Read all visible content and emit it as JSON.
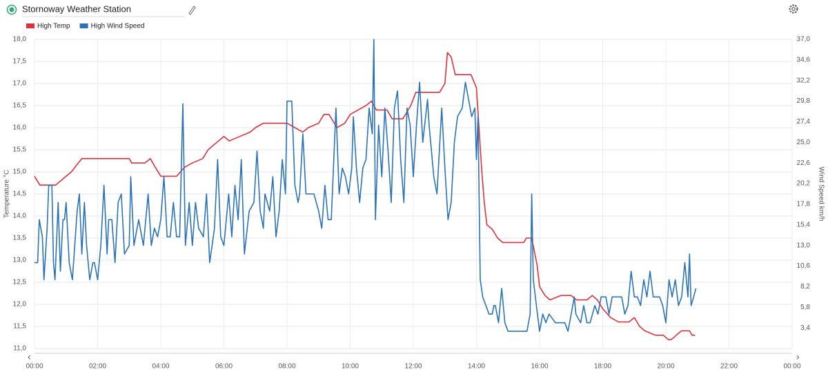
{
  "chart_data": {
    "type": "line",
    "title": "Stornoway Weather Station",
    "ylabel": "Temperature °C",
    "y2label": "Wind Speed km/h",
    "xlim": [
      0,
      24
    ],
    "xticks": [
      {
        "value": 0,
        "label": "00:00"
      },
      {
        "value": 2,
        "label": "02:00"
      },
      {
        "value": 4,
        "label": "04:00"
      },
      {
        "value": 6,
        "label": "06:00"
      },
      {
        "value": 8,
        "label": "08:00"
      },
      {
        "value": 10,
        "label": "10:00"
      },
      {
        "value": 12,
        "label": "12:00"
      },
      {
        "value": 14,
        "label": "14:00"
      },
      {
        "value": 16,
        "label": "16:00"
      },
      {
        "value": 18,
        "label": "18:00"
      },
      {
        "value": 20,
        "label": "20:00"
      },
      {
        "value": 22,
        "label": "22:00"
      },
      {
        "value": 24,
        "label": "00:00"
      }
    ],
    "ylim": [
      11,
      18
    ],
    "yticks": [
      {
        "value": 11,
        "label": "11,0"
      },
      {
        "value": 11.5,
        "label": "11,5"
      },
      {
        "value": 12,
        "label": "12,0"
      },
      {
        "value": 12.5,
        "label": "12,5"
      },
      {
        "value": 13,
        "label": "13,0"
      },
      {
        "value": 13.5,
        "label": "13,5"
      },
      {
        "value": 14,
        "label": "14,0"
      },
      {
        "value": 14.5,
        "label": "14,5"
      },
      {
        "value": 15,
        "label": "15,0"
      },
      {
        "value": 15.5,
        "label": "15,5"
      },
      {
        "value": 16,
        "label": "16,0"
      },
      {
        "value": 16.5,
        "label": "16,5"
      },
      {
        "value": 17,
        "label": "17,0"
      },
      {
        "value": 17.5,
        "label": "17,5"
      },
      {
        "value": 18,
        "label": "18,0"
      }
    ],
    "y2lim": [
      1,
      37
    ],
    "y2ticks": [
      {
        "value": 3.4,
        "label": "3,4"
      },
      {
        "value": 5.8,
        "label": "5,8"
      },
      {
        "value": 8.2,
        "label": "8,2"
      },
      {
        "value": 10.6,
        "label": "10,6"
      },
      {
        "value": 13,
        "label": "13,0"
      },
      {
        "value": 15.4,
        "label": "15,4"
      },
      {
        "value": 17.8,
        "label": "17,8"
      },
      {
        "value": 20.2,
        "label": "20,2"
      },
      {
        "value": 22.6,
        "label": "22,6"
      },
      {
        "value": 25,
        "label": "25,0"
      },
      {
        "value": 27.4,
        "label": "27,4"
      },
      {
        "value": 29.8,
        "label": "29,8"
      },
      {
        "value": 32.2,
        "label": "32,2"
      },
      {
        "value": 34.6,
        "label": "34,6"
      },
      {
        "value": 37,
        "label": "37,0"
      }
    ],
    "grid": true,
    "legend": "top-left",
    "series": [
      {
        "name": "High Temp",
        "color": "#e0303a",
        "x": [
          0,
          0.17,
          0.67,
          1,
          1.17,
          1.5,
          3,
          3.08,
          3.5,
          3.67,
          3.83,
          4,
          4.5,
          4.75,
          5,
          5.33,
          5.5,
          5.83,
          6,
          6.17,
          6.5,
          6.83,
          7,
          7.25,
          8,
          8.25,
          8.5,
          8.67,
          9,
          9.17,
          9.33,
          9.58,
          9.83,
          10,
          10.25,
          10.5,
          10.67,
          10.83,
          11.17,
          11.33,
          11.67,
          11.92,
          12.08,
          12.5,
          12.83,
          13,
          13.08,
          13.2,
          13.33,
          13.83,
          14,
          14.08,
          14.17,
          14.25,
          14.33,
          14.5,
          14.67,
          14.83,
          15.5,
          15.58,
          15.75,
          15.92,
          16,
          16.17,
          16.33,
          16.67,
          17,
          17.17,
          17.5,
          17.67,
          17.83,
          18,
          18.25,
          18.5,
          18.83,
          19,
          19.17,
          19.33,
          19.67,
          19.92,
          20.08,
          20.17,
          20.33,
          20.5,
          20.75,
          20.83,
          20.93
        ],
        "values": [
          14.9,
          14.7,
          14.7,
          14.9,
          15,
          15.3,
          15.3,
          15.2,
          15.2,
          15.3,
          15.1,
          14.9,
          14.9,
          15.1,
          15.2,
          15.3,
          15.5,
          15.7,
          15.8,
          15.7,
          15.8,
          15.9,
          16,
          16.1,
          16.1,
          16,
          15.9,
          16,
          16.1,
          16.3,
          16.3,
          16,
          16.1,
          16.3,
          16.4,
          16.5,
          16.6,
          16.4,
          16.4,
          16.2,
          16.2,
          16.5,
          16.8,
          16.8,
          16.8,
          17,
          17.7,
          17.6,
          17.2,
          17.2,
          16.9,
          16,
          15,
          14.3,
          13.8,
          13.7,
          13.5,
          13.4,
          13.4,
          13.5,
          13.5,
          12.9,
          12.4,
          12.2,
          12.1,
          12.2,
          12.2,
          12.1,
          12.1,
          12.2,
          12.1,
          11.9,
          11.7,
          11.6,
          11.6,
          11.7,
          11.5,
          11.4,
          11.3,
          11.3,
          11.2,
          11.2,
          11.3,
          11.4,
          11.4,
          11.3,
          11.3
        ]
      },
      {
        "name": "High Wind Speed",
        "color": "#2a73b8",
        "axis": "y2",
        "x": [
          0,
          0.1,
          0.15,
          0.25,
          0.3,
          0.4,
          0.45,
          0.55,
          0.6,
          0.65,
          0.75,
          0.82,
          0.9,
          0.95,
          1,
          1.1,
          1.2,
          1.35,
          1.42,
          1.5,
          1.58,
          1.65,
          1.75,
          1.85,
          1.9,
          2,
          2.1,
          2.2,
          2.3,
          2.35,
          2.45,
          2.55,
          2.65,
          2.75,
          2.85,
          3,
          3.05,
          3.15,
          3.3,
          3.45,
          3.6,
          3.7,
          3.8,
          3.9,
          4,
          4.1,
          4.2,
          4.3,
          4.4,
          4.5,
          4.6,
          4.7,
          4.78,
          4.9,
          5,
          5.1,
          5.2,
          5.35,
          5.45,
          5.55,
          5.7,
          5.8,
          5.9,
          6,
          6.15,
          6.25,
          6.35,
          6.45,
          6.55,
          6.65,
          6.8,
          6.95,
          7.05,
          7.15,
          7.25,
          7.3,
          7.45,
          7.55,
          7.65,
          7.75,
          7.85,
          7.95,
          8,
          8.15,
          8.25,
          8.35,
          8.4,
          8.5,
          8.6,
          8.7,
          8.85,
          9,
          9.1,
          9.2,
          9.3,
          9.4,
          9.55,
          9.65,
          9.75,
          9.85,
          9.95,
          10.05,
          10.1,
          10.2,
          10.3,
          10.4,
          10.5,
          10.6,
          10.7,
          10.75,
          10.8,
          10.9,
          11,
          11.1,
          11.2,
          11.3,
          11.4,
          11.5,
          11.6,
          11.7,
          11.8,
          11.9,
          12,
          12.1,
          12.2,
          12.3,
          12.45,
          12.5,
          12.65,
          12.75,
          12.9,
          13,
          13.1,
          13.2,
          13.3,
          13.4,
          13.55,
          13.65,
          13.75,
          13.85,
          13.95,
          14,
          14.05,
          14.12,
          14.2,
          14.3,
          14.4,
          14.5,
          14.55,
          14.6,
          14.7,
          14.75,
          14.8,
          14.9,
          15,
          15.2,
          15.4,
          15.5,
          15.6,
          15.7,
          15.75,
          15.8,
          15.9,
          16,
          16.1,
          16.2,
          16.3,
          16.5,
          16.7,
          16.8,
          16.9,
          17,
          17.1,
          17.15,
          17.3,
          17.4,
          17.5,
          17.6,
          17.75,
          17.85,
          17.95,
          18.1,
          18.2,
          18.3,
          18.4,
          18.5,
          18.6,
          18.7,
          18.8,
          18.9,
          19,
          19.1,
          19.2,
          19.3,
          19.4,
          19.5,
          19.6,
          19.7,
          19.8,
          19.9,
          20,
          20.1,
          20.2,
          20.3,
          20.4,
          20.5,
          20.6,
          20.7,
          20.75,
          20.8,
          20.88,
          20.95
        ],
        "values": [
          11,
          11,
          16,
          14,
          9,
          15,
          20,
          20,
          11,
          9,
          18,
          10,
          16,
          16,
          18,
          11,
          9,
          17,
          19,
          12,
          18,
          13,
          9,
          11,
          11,
          9,
          13,
          20,
          12,
          16,
          16,
          11,
          18,
          19,
          12,
          13,
          21,
          13,
          16,
          13,
          19,
          13,
          15,
          14,
          16,
          21,
          14,
          14,
          18,
          14,
          14,
          29.5,
          13,
          18,
          13,
          18,
          15,
          14,
          19,
          11,
          15,
          23,
          14,
          13,
          19,
          14,
          20,
          16,
          23,
          12,
          17,
          18,
          24,
          17,
          15,
          19,
          17,
          21,
          14,
          17,
          23,
          19,
          29.8,
          29.8,
          20,
          18,
          19,
          26,
          19,
          19,
          19,
          17,
          15,
          20,
          16,
          16,
          29,
          19,
          22,
          21,
          19,
          22,
          28,
          22,
          18,
          22,
          23,
          29,
          26,
          37,
          16,
          27,
          21,
          29,
          24,
          18,
          29,
          31,
          23,
          18,
          29,
          27,
          21,
          27,
          32,
          25,
          30,
          27,
          21,
          19,
          29,
          22,
          16,
          18,
          25,
          28,
          29,
          32,
          30,
          28,
          29,
          23,
          28,
          9,
          7,
          6,
          5,
          5,
          6,
          6,
          4,
          6,
          8,
          4,
          3,
          3,
          3,
          3,
          3,
          5,
          19,
          9,
          6,
          3,
          5,
          4,
          5,
          4,
          4,
          4,
          3,
          5,
          7,
          5,
          4,
          6,
          4,
          4,
          6,
          5,
          7,
          7,
          5,
          7,
          7,
          7,
          7,
          5,
          6,
          10,
          7,
          7,
          6,
          9,
          7,
          10,
          7,
          7,
          7,
          6,
          4,
          9,
          7,
          9,
          6,
          7,
          11,
          7,
          12,
          6,
          7,
          8
        ]
      }
    ]
  }
}
